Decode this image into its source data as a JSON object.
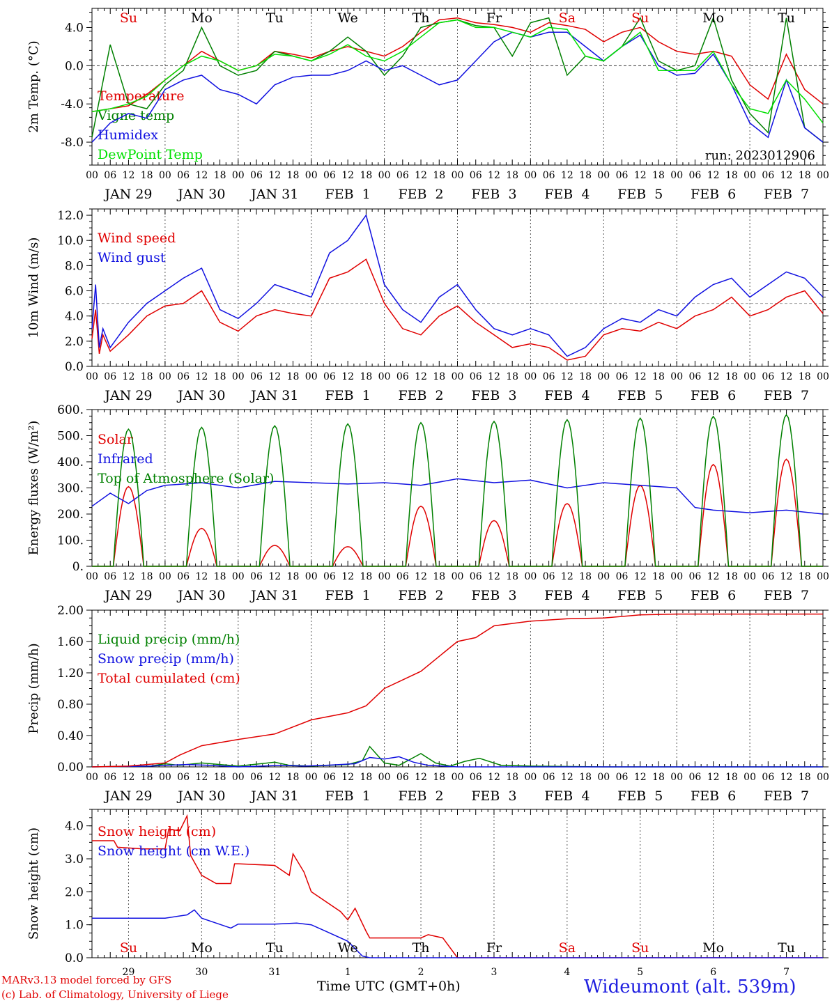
{
  "footer": {
    "model_line": "MARv3.13 model forced by GFS",
    "copyright_line": "(c) Lab. of Climatology, University of Liege",
    "station": "Wideumont (alt. 539m)",
    "x_title": "Time UTC (GMT+0h)"
  },
  "colors": {
    "red": "#e00000",
    "green": "#008000",
    "blue": "#1010e0",
    "lightgreen": "#00e000"
  },
  "hour_ticks": [
    "00",
    "06",
    "12",
    "18"
  ],
  "date_labels": [
    "JAN 29",
    "JAN 30",
    "JAN 31",
    "FEB  1",
    "FEB  2",
    "FEB  3",
    "FEB  4",
    "FEB  5",
    "FEB  6",
    "FEB  7"
  ],
  "day_names": [
    "Su",
    "Mo",
    "Tu",
    "We",
    "Th",
    "Fr",
    "Sa",
    "Su",
    "Mo",
    "Tu"
  ],
  "day_name_colors": [
    "#e00000",
    "#000000",
    "#000000",
    "#000000",
    "#000000",
    "#000000",
    "#e00000",
    "#e00000",
    "#000000",
    "#000000"
  ],
  "day_numbers": [
    "29",
    "30",
    "31",
    "1",
    "2",
    "3",
    "4",
    "5",
    "6",
    "7"
  ],
  "chart_data": [
    {
      "id": "temperature",
      "type": "line",
      "ylabel": "2m Temp. (°C)",
      "ylim": [
        -10.4,
        6.0
      ],
      "yticks": [
        -8.0,
        -4.0,
        0.0,
        4.0
      ],
      "ytick_labels": [
        "-8.0",
        "-4.0",
        "0.0",
        "4.0"
      ],
      "ref_line": 0.0,
      "run_label": "run: 2023012906",
      "x_unit": "day index from JAN 29 00 UTC",
      "series": [
        {
          "name": "Temperature",
          "color": "#e00000",
          "x": [
            0,
            0.25,
            0.5,
            0.75,
            1,
            1.25,
            1.5,
            1.75,
            2,
            2.25,
            2.5,
            2.75,
            3,
            3.25,
            3.5,
            3.75,
            4,
            4.25,
            4.5,
            4.75,
            5,
            5.25,
            5.5,
            5.75,
            6,
            6.25,
            6.5,
            6.75,
            7,
            7.25,
            7.5,
            7.75,
            8,
            8.25,
            8.5,
            8.75,
            9,
            9.25,
            9.5,
            9.75,
            10
          ],
          "y": [
            -4.8,
            -4.5,
            -4.2,
            -3.0,
            -1.5,
            0.0,
            1.5,
            0.5,
            -0.5,
            0.0,
            1.5,
            1.2,
            0.8,
            1.5,
            2.0,
            1.5,
            1.0,
            2.0,
            3.5,
            4.8,
            5.0,
            4.5,
            4.3,
            4.0,
            3.5,
            4.5,
            4.2,
            3.8,
            2.5,
            3.5,
            4.0,
            2.5,
            1.5,
            1.2,
            1.5,
            1.0,
            -2.0,
            -3.5,
            1.2,
            -2.5,
            -4.0
          ]
        },
        {
          "name": "Vigne temp",
          "color": "#008000",
          "x": [
            0,
            0.25,
            0.5,
            0.75,
            1,
            1.25,
            1.5,
            1.75,
            2,
            2.25,
            2.5,
            2.75,
            3,
            3.25,
            3.5,
            3.75,
            4,
            4.25,
            4.5,
            4.75,
            5,
            5.25,
            5.5,
            5.75,
            6,
            6.25,
            6.5,
            6.75,
            7,
            7.25,
            7.5,
            7.75,
            8,
            8.25,
            8.5,
            8.75,
            9,
            9.25,
            9.5,
            9.75,
            10
          ],
          "y": [
            -7.5,
            2.2,
            -4.0,
            -4.5,
            -2.0,
            -0.5,
            4.0,
            0.0,
            -1.0,
            -0.5,
            1.5,
            1.0,
            0.5,
            1.5,
            3.0,
            1.5,
            -1.0,
            1.0,
            4.0,
            4.5,
            4.8,
            4.2,
            4.0,
            1.0,
            4.5,
            5.0,
            -1.0,
            1.0,
            0.5,
            2.0,
            5.0,
            0.5,
            -0.5,
            0.0,
            5.0,
            -1.5,
            -5.0,
            -7.0,
            5.0,
            -6.5,
            -8.0
          ]
        },
        {
          "name": "Humidex",
          "color": "#1010e0",
          "x": [
            0,
            0.25,
            0.5,
            0.75,
            1,
            1.25,
            1.5,
            1.75,
            2,
            2.25,
            2.5,
            2.75,
            3,
            3.25,
            3.5,
            3.75,
            4,
            4.25,
            4.5,
            4.75,
            5,
            5.25,
            5.5,
            5.75,
            6,
            6.25,
            6.5,
            6.75,
            7,
            7.25,
            7.5,
            7.75,
            8,
            8.25,
            8.5,
            8.75,
            9,
            9.25,
            9.5,
            9.75,
            10
          ],
          "y": [
            -8.0,
            -6.0,
            -5.0,
            -5.5,
            -2.5,
            -1.5,
            -1.0,
            -2.5,
            -3.0,
            -4.0,
            -2.0,
            -1.2,
            -1.0,
            -1.0,
            -0.5,
            0.5,
            -0.5,
            0.0,
            -1.0,
            -2.0,
            -1.5,
            0.5,
            2.5,
            3.5,
            3.0,
            3.5,
            3.5,
            2.0,
            0.5,
            2.0,
            3.2,
            0.0,
            -1.0,
            -0.8,
            1.2,
            -2.0,
            -6.0,
            -7.5,
            -1.5,
            -6.5,
            -8.0
          ]
        },
        {
          "name": "DewPoint Temp",
          "color": "#00e000",
          "x": [
            0,
            0.25,
            0.5,
            0.75,
            1,
            1.25,
            1.5,
            1.75,
            2,
            2.25,
            2.5,
            2.75,
            3,
            3.25,
            3.5,
            3.75,
            4,
            4.25,
            4.5,
            4.75,
            5,
            5.25,
            5.5,
            5.75,
            6,
            6.25,
            6.5,
            6.75,
            7,
            7.25,
            7.5,
            7.75,
            8,
            8.25,
            8.5,
            8.75,
            9,
            9.25,
            9.5,
            9.75,
            10
          ],
          "y": [
            -4.8,
            -4.5,
            -4.0,
            -3.2,
            -1.5,
            0.0,
            1.0,
            0.5,
            -0.5,
            0.0,
            1.2,
            1.0,
            0.5,
            1.2,
            2.2,
            1.0,
            0.5,
            1.5,
            3.0,
            4.5,
            4.8,
            4.0,
            4.0,
            3.5,
            3.0,
            4.0,
            3.8,
            1.0,
            0.5,
            2.0,
            3.5,
            -0.5,
            -0.5,
            -0.5,
            1.5,
            -2.0,
            -4.5,
            -5.0,
            -1.5,
            -3.5,
            -6.0
          ]
        }
      ]
    },
    {
      "id": "wind",
      "type": "line",
      "ylabel": "10m Wind (m/s)",
      "ylim": [
        0.0,
        12.5
      ],
      "yticks": [
        0.0,
        2.0,
        4.0,
        6.0,
        8.0,
        10.0,
        12.0
      ],
      "ytick_labels": [
        "0.0",
        "2.0",
        "4.0",
        "6.0",
        "8.0",
        "10.0",
        "12.0"
      ],
      "ref_line": 5.0,
      "series": [
        {
          "name": "Wind speed",
          "color": "#e00000",
          "x": [
            0,
            0.05,
            0.1,
            0.15,
            0.25,
            0.5,
            0.75,
            1,
            1.25,
            1.5,
            1.75,
            2,
            2.25,
            2.5,
            2.75,
            3,
            3.25,
            3.5,
            3.75,
            4,
            4.25,
            4.5,
            4.75,
            5,
            5.25,
            5.5,
            5.75,
            6,
            6.25,
            6.5,
            6.75,
            7,
            7.25,
            7.5,
            7.75,
            8,
            8.25,
            8.5,
            8.75,
            9,
            9.25,
            9.5,
            9.75,
            10
          ],
          "y": [
            2.2,
            4.5,
            1.0,
            2.5,
            1.2,
            2.5,
            4.0,
            4.8,
            5.0,
            6.0,
            3.5,
            2.8,
            4.0,
            4.5,
            4.2,
            4.0,
            7.0,
            7.5,
            8.5,
            5.0,
            3.0,
            2.5,
            4.0,
            4.8,
            3.5,
            2.5,
            1.5,
            1.8,
            1.5,
            0.5,
            0.8,
            2.5,
            3.0,
            2.8,
            3.5,
            3.0,
            4.0,
            4.5,
            5.5,
            4.0,
            4.5,
            5.5,
            6.0,
            4.2
          ]
        },
        {
          "name": "Wind gust",
          "color": "#1010e0",
          "x": [
            0,
            0.05,
            0.1,
            0.15,
            0.25,
            0.5,
            0.75,
            1,
            1.25,
            1.5,
            1.75,
            2,
            2.25,
            2.5,
            2.75,
            3,
            3.25,
            3.5,
            3.75,
            4,
            4.25,
            4.5,
            4.75,
            5,
            5.25,
            5.5,
            5.75,
            6,
            6.25,
            6.5,
            6.75,
            7,
            7.25,
            7.5,
            7.75,
            8,
            8.25,
            8.5,
            8.75,
            9,
            9.25,
            9.5,
            9.75,
            10
          ],
          "y": [
            3.0,
            6.5,
            1.5,
            3.0,
            1.5,
            3.5,
            5.0,
            6.0,
            7.0,
            7.8,
            4.5,
            3.8,
            5.0,
            6.5,
            6.0,
            5.5,
            9.0,
            10.0,
            12.0,
            6.5,
            4.5,
            3.5,
            5.5,
            6.5,
            4.5,
            3.0,
            2.5,
            3.0,
            2.5,
            0.8,
            1.5,
            3.0,
            3.8,
            3.5,
            4.5,
            4.0,
            5.5,
            6.5,
            7.0,
            5.5,
            6.5,
            7.5,
            7.0,
            5.5
          ]
        }
      ]
    },
    {
      "id": "energy",
      "type": "line",
      "ylabel": "Energy fluxes (W/m²)",
      "ylim": [
        0,
        600
      ],
      "yticks": [
        0,
        100,
        200,
        300,
        400,
        500,
        600
      ],
      "ytick_labels": [
        "0.",
        "100.",
        "200.",
        "300.",
        "400.",
        "500.",
        "600."
      ],
      "series": [
        {
          "name": "Solar",
          "color": "#e00000",
          "daily_peak": [
            305,
            145,
            80,
            75,
            230,
            175,
            240,
            310,
            390,
            410
          ]
        },
        {
          "name": "Infrared",
          "color": "#1010e0",
          "x": [
            0,
            0.25,
            0.5,
            0.75,
            1,
            1.5,
            2,
            2.5,
            3,
            3.5,
            4,
            4.5,
            5,
            5.5,
            6,
            6.5,
            7,
            7.5,
            8,
            8.25,
            8.5,
            9,
            9.5,
            10
          ],
          "y": [
            230,
            280,
            240,
            290,
            310,
            320,
            300,
            325,
            320,
            315,
            320,
            310,
            335,
            320,
            330,
            300,
            320,
            310,
            300,
            225,
            215,
            205,
            215,
            200
          ]
        },
        {
          "name": "Top of Atmosphere (Solar)",
          "color": "#008000",
          "daily_peak": [
            525,
            532,
            538,
            545,
            550,
            555,
            561,
            567,
            574,
            580
          ]
        }
      ]
    },
    {
      "id": "precip",
      "type": "line",
      "ylabel": "Precip (mm/h)",
      "ylim": [
        0.0,
        2.0
      ],
      "yticks": [
        0.0,
        0.4,
        0.8,
        1.2,
        1.6,
        2.0
      ],
      "ytick_labels": [
        "0.00",
        "0.40",
        "0.80",
        "1.20",
        "1.60",
        "2.00"
      ],
      "series": [
        {
          "name": "Liquid precip (mm/h)",
          "color": "#008000",
          "x": [
            0,
            0.8,
            1.0,
            1.2,
            1.5,
            2.0,
            2.5,
            2.7,
            3.0,
            3.5,
            3.7,
            3.8,
            4.0,
            4.2,
            4.4,
            4.5,
            4.7,
            4.9,
            5.1,
            5.3,
            5.6,
            6,
            7,
            8,
            9,
            10
          ],
          "y": [
            0,
            0.01,
            0.04,
            0.02,
            0.05,
            0.01,
            0.06,
            0.02,
            0.01,
            0.03,
            0.08,
            0.26,
            0.05,
            0.02,
            0.12,
            0.17,
            0.05,
            0.01,
            0.07,
            0.11,
            0.02,
            0.01,
            0.0,
            0.0,
            0.0,
            0.0
          ]
        },
        {
          "name": "Snow precip (mm/h)",
          "color": "#1010e0",
          "x": [
            0,
            0.8,
            1.0,
            1.3,
            1.6,
            2.0,
            2.6,
            2.9,
            3.2,
            3.6,
            3.8,
            4.0,
            4.2,
            4.4,
            4.6,
            5.0,
            6,
            7,
            8,
            9,
            10
          ],
          "y": [
            0,
            0.01,
            0.02,
            0.03,
            0.02,
            0.0,
            0.02,
            0.01,
            0.02,
            0.04,
            0.12,
            0.1,
            0.13,
            0.06,
            0.02,
            0.0,
            0.0,
            0.0,
            0.0,
            0.0,
            0.0
          ]
        },
        {
          "name": "Total cumulated (cm)",
          "color": "#e00000",
          "x": [
            0,
            0.5,
            1.0,
            1.2,
            1.5,
            2.0,
            2.5,
            3.0,
            3.5,
            3.75,
            4.0,
            4.5,
            5.0,
            5.25,
            5.5,
            6.0,
            6.5,
            7.0,
            7.5,
            8.0,
            8.5,
            9.0,
            9.5,
            10
          ],
          "y": [
            0,
            0.01,
            0.05,
            0.15,
            0.27,
            0.35,
            0.42,
            0.6,
            0.69,
            0.78,
            1.0,
            1.22,
            1.6,
            1.65,
            1.8,
            1.86,
            1.89,
            1.9,
            1.94,
            1.95,
            1.95,
            1.95,
            1.95,
            1.95
          ]
        }
      ]
    },
    {
      "id": "snow",
      "type": "line",
      "ylabel": "Snow height (cm)",
      "ylim": [
        0.0,
        4.5
      ],
      "yticks": [
        0.0,
        1.0,
        2.0,
        3.0,
        4.0
      ],
      "ytick_labels": [
        "0.0",
        "1.0",
        "2.0",
        "3.0",
        "4.0"
      ],
      "series": [
        {
          "name": "Snow height (cm)",
          "color": "#e00000",
          "x": [
            0,
            0.3,
            0.35,
            0.7,
            1.0,
            1.05,
            1.2,
            1.3,
            1.35,
            1.5,
            1.7,
            1.9,
            1.95,
            2.0,
            2.5,
            2.7,
            2.75,
            2.9,
            3.0,
            3.4,
            3.5,
            3.6,
            3.75,
            3.8,
            4.2,
            4.3,
            4.5,
            4.6,
            4.8,
            5.0,
            6,
            7,
            8,
            9,
            10
          ],
          "y": [
            3.55,
            3.55,
            3.35,
            3.3,
            3.3,
            3.9,
            3.85,
            4.3,
            3.1,
            2.5,
            2.25,
            2.25,
            2.85,
            2.85,
            2.8,
            2.5,
            3.15,
            2.6,
            2.0,
            1.4,
            1.15,
            1.5,
            0.8,
            0.6,
            0.6,
            0.6,
            0.6,
            0.7,
            0.6,
            0.0,
            0.0,
            0.0,
            0.0,
            0.0,
            0.0
          ]
        },
        {
          "name": "Snow height (cm W.E.)",
          "color": "#1010e0",
          "x": [
            0,
            0.5,
            1.0,
            1.3,
            1.4,
            1.5,
            1.7,
            1.9,
            2.0,
            2.5,
            2.8,
            3.0,
            3.2,
            3.5,
            3.7,
            3.8,
            10
          ],
          "y": [
            1.2,
            1.2,
            1.2,
            1.3,
            1.45,
            1.2,
            1.05,
            0.9,
            1.02,
            1.02,
            1.05,
            1.0,
            0.8,
            0.5,
            0.05,
            0.0,
            0.0
          ]
        }
      ]
    }
  ]
}
